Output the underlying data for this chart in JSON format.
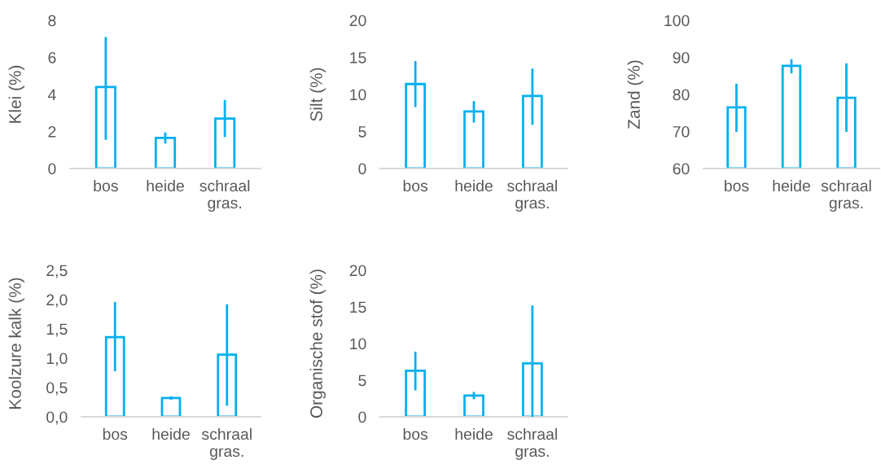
{
  "chart_data": [
    {
      "type": "bar",
      "ylabel": "Klei (%)",
      "categories": [
        "bos",
        "heide",
        "schraal\ngras."
      ],
      "values": [
        4.4,
        1.65,
        2.7
      ],
      "errors": [
        [
          1.55,
          7.1
        ],
        [
          1.35,
          1.95
        ],
        [
          1.7,
          3.7
        ]
      ],
      "color": "#00b0f0",
      "ylim": [
        0,
        8
      ],
      "yticks": [
        0,
        2,
        4,
        6,
        8
      ]
    },
    {
      "type": "bar",
      "ylabel": "Silt (%)",
      "categories": [
        "bos",
        "heide",
        "schraal\ngras."
      ],
      "values": [
        11.4,
        7.7,
        9.8
      ],
      "errors": [
        [
          8.3,
          14.5
        ],
        [
          6.2,
          9.1
        ],
        [
          5.9,
          13.5
        ]
      ],
      "color": "#00b0f0",
      "ylim": [
        0,
        20
      ],
      "yticks": [
        0,
        5,
        10,
        15,
        20
      ]
    },
    {
      "type": "bar",
      "ylabel": "Zand (%)",
      "categories": [
        "bos",
        "heide",
        "schraal\ngras."
      ],
      "values": [
        76.5,
        87.7,
        79.1
      ],
      "errors": [
        [
          69.9,
          82.9
        ],
        [
          85.7,
          89.5
        ],
        [
          69.9,
          88.4
        ]
      ],
      "color": "#00b0f0",
      "ylim": [
        60,
        100
      ],
      "yticks": [
        60,
        70,
        80,
        90,
        100
      ]
    },
    {
      "type": "bar",
      "ylabel": "Koolzure kalk (%)",
      "categories": [
        "bos",
        "heide",
        "schraal\ngras."
      ],
      "values": [
        1.36,
        0.32,
        1.06
      ],
      "errors": [
        [
          0.78,
          1.96
        ],
        [
          0.29,
          0.35
        ],
        [
          0.19,
          1.92
        ]
      ],
      "color": "#00b0f0",
      "ylim": [
        0,
        2.5
      ],
      "yticks": [
        {
          "value": 0,
          "label": "0,0"
        },
        {
          "value": 0.5,
          "label": "0,5"
        },
        {
          "value": 1,
          "label": "1,0"
        },
        {
          "value": 1.5,
          "label": "1,5"
        },
        {
          "value": 2,
          "label": "2,0"
        },
        {
          "value": 2.5,
          "label": "2,5"
        }
      ]
    },
    {
      "type": "bar",
      "ylabel": "Organische stof (%)",
      "categories": [
        "bos",
        "heide",
        "schraal\ngras."
      ],
      "values": [
        6.3,
        2.9,
        7.3
      ],
      "errors": [
        [
          3.6,
          8.9
        ],
        [
          2.4,
          3.4
        ],
        [
          0,
          15.2
        ]
      ],
      "color": "#00b0f0",
      "ylim": [
        0,
        20
      ],
      "yticks": [
        0,
        5,
        10,
        15,
        20
      ]
    }
  ]
}
